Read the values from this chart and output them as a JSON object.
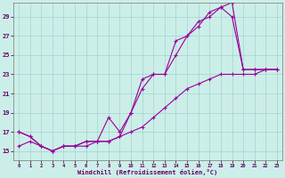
{
  "xlabel": "Windchill (Refroidissement éolien,°C)",
  "background_color": "#cceee8",
  "line_color": "#990099",
  "grid_color": "#99cccc",
  "xlim": [
    -0.5,
    23.5
  ],
  "ylim": [
    14.0,
    30.5
  ],
  "xticks": [
    0,
    1,
    2,
    3,
    4,
    5,
    6,
    7,
    8,
    9,
    10,
    11,
    12,
    13,
    14,
    15,
    16,
    17,
    18,
    19,
    20,
    21,
    22,
    23
  ],
  "yticks": [
    15,
    17,
    19,
    21,
    23,
    25,
    27,
    29
  ],
  "line1_x": [
    0,
    1,
    2,
    3,
    4,
    5,
    6,
    7,
    8,
    9,
    10,
    11,
    12,
    13,
    14,
    15,
    16,
    17,
    18,
    19,
    20,
    21,
    22,
    23
  ],
  "line1_y": [
    17.0,
    16.5,
    15.5,
    15.0,
    15.5,
    15.5,
    16.0,
    16.0,
    16.0,
    16.5,
    19.0,
    21.5,
    23.0,
    23.0,
    25.0,
    27.0,
    28.5,
    29.0,
    30.0,
    30.5,
    23.5,
    23.5,
    23.5,
    23.5
  ],
  "line2_x": [
    0,
    1,
    2,
    3,
    4,
    5,
    6,
    7,
    8,
    9,
    10,
    11,
    12,
    13,
    14,
    15,
    16,
    17,
    18,
    19,
    20,
    21,
    22,
    23
  ],
  "line2_y": [
    17.0,
    16.5,
    15.5,
    15.0,
    15.5,
    15.5,
    16.0,
    16.0,
    18.5,
    17.0,
    19.0,
    22.5,
    23.0,
    23.0,
    26.5,
    27.0,
    28.0,
    29.5,
    30.0,
    29.0,
    23.5,
    23.5,
    23.5,
    23.5
  ],
  "line3_x": [
    0,
    1,
    2,
    3,
    4,
    5,
    6,
    7,
    8,
    9,
    10,
    11,
    12,
    13,
    14,
    15,
    16,
    17,
    18,
    19,
    20,
    21,
    22,
    23
  ],
  "line3_y": [
    15.5,
    16.0,
    15.5,
    15.0,
    15.5,
    15.5,
    15.5,
    16.0,
    16.0,
    16.5,
    17.0,
    17.5,
    18.5,
    19.5,
    20.5,
    21.5,
    22.0,
    22.5,
    23.0,
    23.0,
    23.0,
    23.0,
    23.5,
    23.5
  ]
}
